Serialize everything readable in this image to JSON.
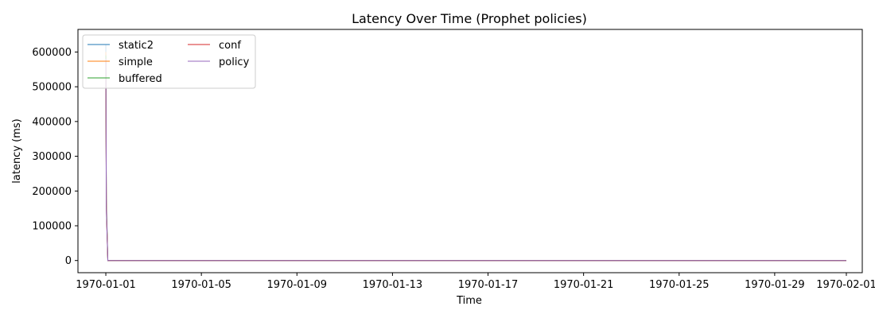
{
  "chart_data": {
    "type": "line",
    "title": "Latency Over Time (Prophet policies)",
    "xlabel": "Time",
    "ylabel": "latency (ms)",
    "xlim": [
      "1969-12-30T20:00",
      "1970-02-01T16:00"
    ],
    "ylim": [
      -35000,
      665000
    ],
    "x_ticks": [
      "1970-01-01",
      "1970-01-05",
      "1970-01-09",
      "1970-01-13",
      "1970-01-17",
      "1970-01-21",
      "1970-01-25",
      "1970-01-29",
      "1970-02-01"
    ],
    "y_ticks": [
      0,
      100000,
      200000,
      300000,
      400000,
      500000,
      600000
    ],
    "legend": {
      "placement": "top-left",
      "columns": 2
    },
    "grid": false,
    "series": [
      {
        "name": "static2",
        "color": "#1f77b4",
        "x": [
          "1970-01-01T00:00",
          "1970-01-01T00:30",
          "1970-01-01T02:00",
          "1970-02-01T00:00"
        ],
        "y": [
          620000,
          180000,
          0,
          0
        ]
      },
      {
        "name": "simple",
        "color": "#ff7f0e",
        "x": [
          "1970-01-01T00:00",
          "1970-01-01T00:30",
          "1970-01-01T02:00",
          "1970-02-01T00:00"
        ],
        "y": [
          600000,
          170000,
          0,
          0
        ]
      },
      {
        "name": "buffered",
        "color": "#2ca02c",
        "x": [
          "1970-01-01T00:00",
          "1970-01-01T00:30",
          "1970-01-01T02:00",
          "1970-02-01T00:00"
        ],
        "y": [
          590000,
          160000,
          0,
          0
        ]
      },
      {
        "name": "conf",
        "color": "#d62728",
        "x": [
          "1970-01-01T00:00",
          "1970-01-01T00:30",
          "1970-01-01T02:00",
          "1970-02-01T00:00"
        ],
        "y": [
          580000,
          150000,
          0,
          0
        ]
      },
      {
        "name": "policy",
        "color": "#9467bd",
        "x": [
          "1970-01-01T00:00",
          "1970-01-01T00:30",
          "1970-01-01T02:00",
          "1970-02-01T00:00"
        ],
        "y": [
          580000,
          150000,
          0,
          0
        ]
      }
    ]
  }
}
